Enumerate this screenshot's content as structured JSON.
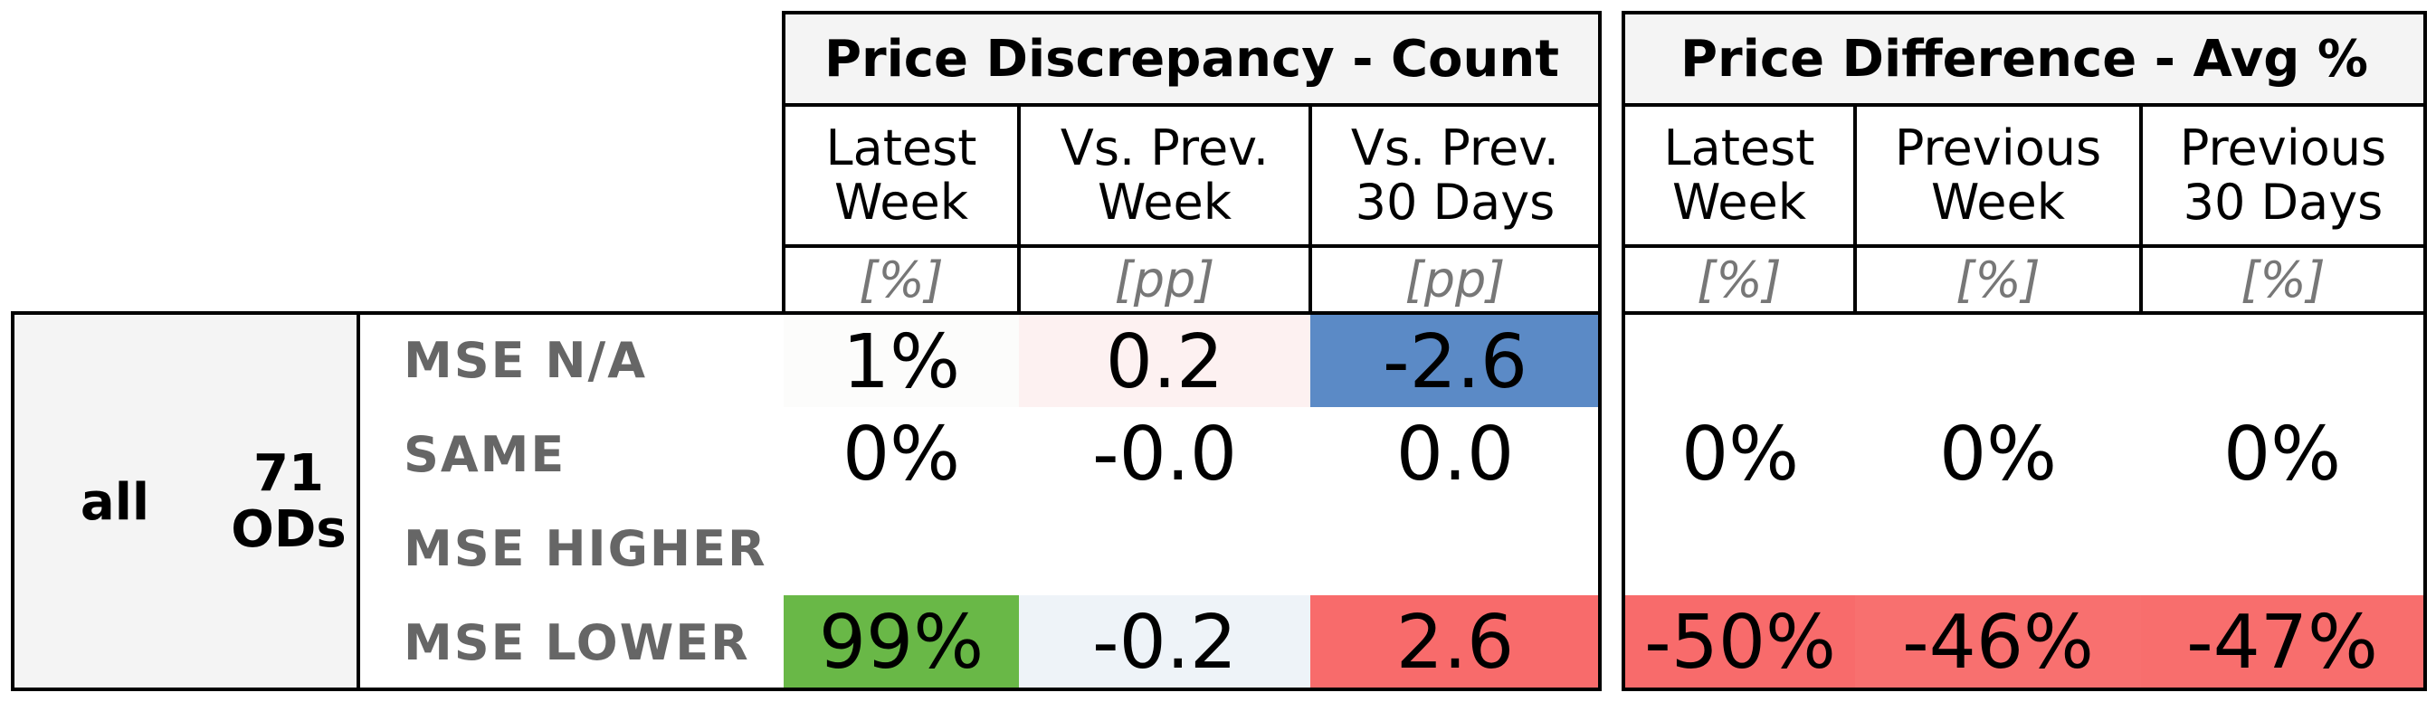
{
  "chart_data": {
    "type": "table",
    "group_headers": [
      "Price Discrepancy - Count",
      "Price Difference - Avg %"
    ],
    "columns": [
      {
        "label": "Latest\nWeek",
        "unit": "[%]"
      },
      {
        "label": "Vs. Prev.\nWeek",
        "unit": "[pp]"
      },
      {
        "label": "Vs. Prev.\n30 Days",
        "unit": "[pp]"
      },
      {
        "label": "Latest\nWeek",
        "unit": "[%]"
      },
      {
        "label": "Previous\nWeek",
        "unit": "[%]"
      },
      {
        "label": "Previous\n30 Days",
        "unit": "[%]"
      }
    ],
    "segment": {
      "label": "all",
      "count": "71\nODs"
    },
    "rows": [
      {
        "label": "MSE N/A",
        "values": [
          "1%",
          "0.2",
          "-2.6",
          "",
          "",
          ""
        ],
        "colors": [
          "#fcfcfb",
          "#fdf1f1",
          "#5b8ac6",
          "#ffffff",
          "#ffffff",
          "#ffffff"
        ]
      },
      {
        "label": "SAME",
        "values": [
          "0%",
          "-0.0",
          "0.0",
          "0%",
          "0%",
          "0%"
        ],
        "colors": [
          "#ffffff",
          "#ffffff",
          "#ffffff",
          "#ffffff",
          "#ffffff",
          "#ffffff"
        ]
      },
      {
        "label": "MSE HIGHER",
        "values": [
          "",
          "",
          "",
          "",
          "",
          ""
        ],
        "colors": [
          "#ffffff",
          "#ffffff",
          "#ffffff",
          "#ffffff",
          "#ffffff",
          "#ffffff"
        ]
      },
      {
        "label": "MSE LOWER",
        "values": [
          "99%",
          "-0.2",
          "2.6",
          "-50%",
          "-46%",
          "-47%"
        ],
        "colors": [
          "#69b847",
          "#eef3f8",
          "#f86b6b",
          "#f86b6b",
          "#f8706f",
          "#f86e6d"
        ]
      }
    ]
  }
}
